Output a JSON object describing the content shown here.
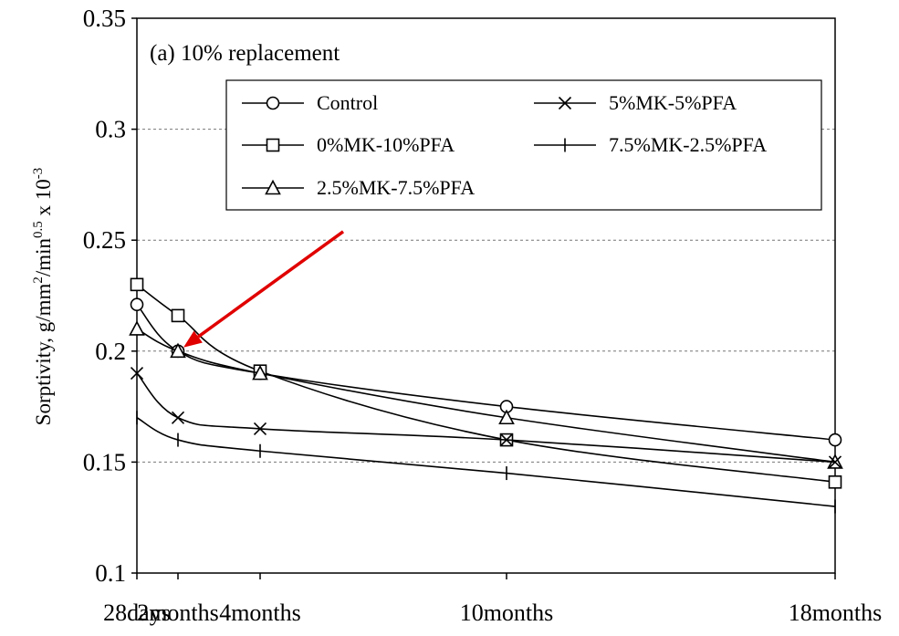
{
  "chart_data": {
    "type": "line",
    "panel_label": "(a) 10% replacement",
    "xlabel": "",
    "ylabel": "Sorptivity, g/mm²/min⁰·⁵ x 10⁻³",
    "ylabel_parts": {
      "prefix": "Sorptivity, g/mm",
      "sup1": "2",
      "mid": "/min",
      "sup2": "0.5",
      "suffix": " x 10",
      "sup3": "-3"
    },
    "categories": [
      "28days",
      "2months",
      "4months",
      "10months",
      "18months"
    ],
    "x_positions_months": [
      1,
      2,
      4,
      10,
      18
    ],
    "ylim": [
      0.1,
      0.35
    ],
    "yticks": [
      "0.1",
      "0.15",
      "0.2",
      "0.25",
      "0.3",
      "0.35"
    ],
    "grid": "horizontal dashed",
    "legend_position": "top",
    "series": [
      {
        "name": "Control",
        "marker": "circle",
        "values": [
          0.221,
          0.2,
          0.19,
          0.175,
          0.16
        ]
      },
      {
        "name": "0%MK-10%PFA",
        "marker": "square",
        "values": [
          0.23,
          0.216,
          0.191,
          0.16,
          0.141
        ]
      },
      {
        "name": "2.5%MK-7.5%PFA",
        "marker": "triangle",
        "values": [
          0.21,
          0.2,
          0.19,
          0.17,
          0.15
        ]
      },
      {
        "name": "5%MK-5%PFA",
        "marker": "x",
        "values": [
          0.19,
          0.17,
          0.165,
          0.16,
          0.15
        ]
      },
      {
        "name": "7.5%MK-2.5%PFA",
        "marker": "plus",
        "values": [
          0.17,
          0.16,
          0.155,
          0.145,
          0.13
        ]
      }
    ],
    "annotation": {
      "type": "arrow",
      "color": "#e00000",
      "points_to": {
        "category": "2months",
        "value": 0.2
      }
    }
  }
}
